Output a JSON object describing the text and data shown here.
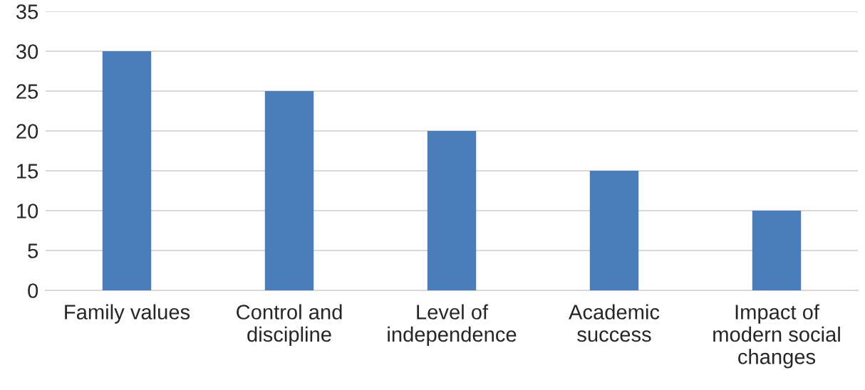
{
  "chart_data": {
    "type": "bar",
    "categories": [
      "Family values",
      "Control and\ndiscipline",
      "Level of\nindependence",
      "Academic\nsuccess",
      "Impact of\nmodern social\nchanges"
    ],
    "values": [
      30,
      25,
      20,
      15,
      10
    ],
    "color": "#4a7ebb",
    "ylim": [
      0,
      35
    ],
    "yticks": [
      0,
      5,
      10,
      15,
      20,
      25,
      30,
      35
    ],
    "grid": "y"
  }
}
